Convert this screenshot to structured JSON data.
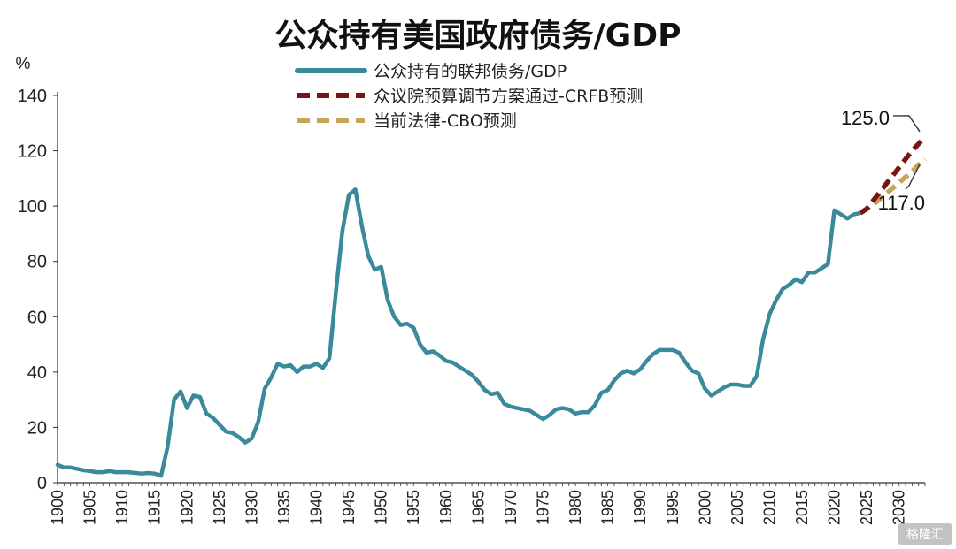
{
  "chart_data": {
    "type": "line",
    "title": "公众持有美国政府债务/GDP",
    "ylabel": "%",
    "xlabel": "",
    "ylim": [
      0,
      140
    ],
    "xlim": [
      1900,
      2034
    ],
    "yticks": [
      "0",
      "20",
      "40",
      "60",
      "80",
      "100",
      "120",
      "140"
    ],
    "xticks": [
      "1900",
      "1905",
      "1910",
      "1915",
      "1920",
      "1925",
      "1930",
      "1935",
      "1940",
      "1945",
      "1950",
      "1955",
      "1960",
      "1965",
      "1970",
      "1975",
      "1980",
      "1985",
      "1990",
      "1995",
      "2000",
      "2005",
      "2010",
      "2015",
      "2020",
      "2025",
      "2030"
    ],
    "legend": "top-center",
    "grid": false,
    "series": [
      {
        "name": "公众持有的联邦债务/GDP",
        "style": "solid",
        "color": "#3a8a9c",
        "x": [
          1900,
          1901,
          1902,
          1903,
          1904,
          1905,
          1906,
          1907,
          1908,
          1909,
          1910,
          1911,
          1912,
          1913,
          1914,
          1915,
          1916,
          1917,
          1918,
          1919,
          1920,
          1921,
          1922,
          1923,
          1924,
          1925,
          1926,
          1927,
          1928,
          1929,
          1930,
          1931,
          1932,
          1933,
          1934,
          1935,
          1936,
          1937,
          1938,
          1939,
          1940,
          1941,
          1942,
          1943,
          1944,
          1945,
          1946,
          1947,
          1948,
          1949,
          1950,
          1951,
          1952,
          1953,
          1954,
          1955,
          1956,
          1957,
          1958,
          1959,
          1960,
          1961,
          1962,
          1963,
          1964,
          1965,
          1966,
          1967,
          1968,
          1969,
          1970,
          1971,
          1972,
          1973,
          1974,
          1975,
          1976,
          1977,
          1978,
          1979,
          1980,
          1981,
          1982,
          1983,
          1984,
          1985,
          1986,
          1987,
          1988,
          1989,
          1990,
          1991,
          1992,
          1993,
          1994,
          1995,
          1996,
          1997,
          1998,
          1999,
          2000,
          2001,
          2002,
          2003,
          2004,
          2005,
          2006,
          2007,
          2008,
          2009,
          2010,
          2011,
          2012,
          2013,
          2014,
          2015,
          2016,
          2017,
          2018,
          2019,
          2020,
          2021,
          2022,
          2023,
          2024
        ],
        "values": [
          6.5,
          5.5,
          5.5,
          5.0,
          4.5,
          4.2,
          3.8,
          3.8,
          4.2,
          3.8,
          3.8,
          3.8,
          3.5,
          3.3,
          3.5,
          3.3,
          2.5,
          13,
          30,
          33,
          27,
          31.5,
          31,
          25,
          23.5,
          21,
          18.5,
          18,
          16.5,
          14.5,
          16,
          22,
          34,
          38,
          43,
          42,
          42.5,
          40,
          42,
          42,
          43,
          41.5,
          45,
          69,
          91,
          104,
          106,
          93,
          82,
          77,
          78,
          66,
          60,
          57,
          57.5,
          56,
          50,
          47,
          47.5,
          46,
          44,
          43.5,
          42,
          40.5,
          39,
          36.5,
          33.5,
          32,
          32.5,
          28.5,
          27.5,
          27,
          26.5,
          26,
          24.5,
          23,
          24.5,
          26.5,
          27,
          26.5,
          25,
          25.5,
          25.5,
          28,
          32.5,
          33.5,
          37,
          39.5,
          40.5,
          39.5,
          41,
          44,
          46.5,
          48,
          48,
          48,
          47,
          43.5,
          40.5,
          39.5,
          34,
          31.5,
          33,
          34.5,
          35.5,
          35.5,
          35,
          35,
          38.5,
          52,
          61,
          66,
          70,
          71.5,
          73.5,
          72.5,
          76,
          76,
          77.5,
          79,
          98.5,
          97,
          95.5,
          97,
          97.5
        ]
      },
      {
        "name": "众议院预算调节方案通过-CRFB预测",
        "style": "dashed",
        "color": "#7a1515",
        "x": [
          2024,
          2025,
          2026,
          2027,
          2028,
          2029,
          2030,
          2031,
          2032,
          2033,
          2034
        ],
        "values": [
          97.5,
          99,
          102,
          105,
          108,
          111,
          114,
          117,
          120,
          122.5,
          125
        ]
      },
      {
        "name": "当前法律-CBO预测",
        "style": "dashed",
        "color": "#c8a35a",
        "x": [
          2024,
          2025,
          2026,
          2027,
          2028,
          2029,
          2030,
          2031,
          2032,
          2033,
          2034
        ],
        "values": [
          97.5,
          99,
          100.5,
          102.5,
          104.5,
          106.5,
          108.5,
          110.5,
          112.5,
          115,
          117
        ]
      }
    ],
    "annotations": [
      {
        "text": "125.0",
        "x": 2034,
        "y": 125
      },
      {
        "text": "117.0",
        "x": 2034,
        "y": 117
      }
    ]
  },
  "watermark": "格隆汇"
}
